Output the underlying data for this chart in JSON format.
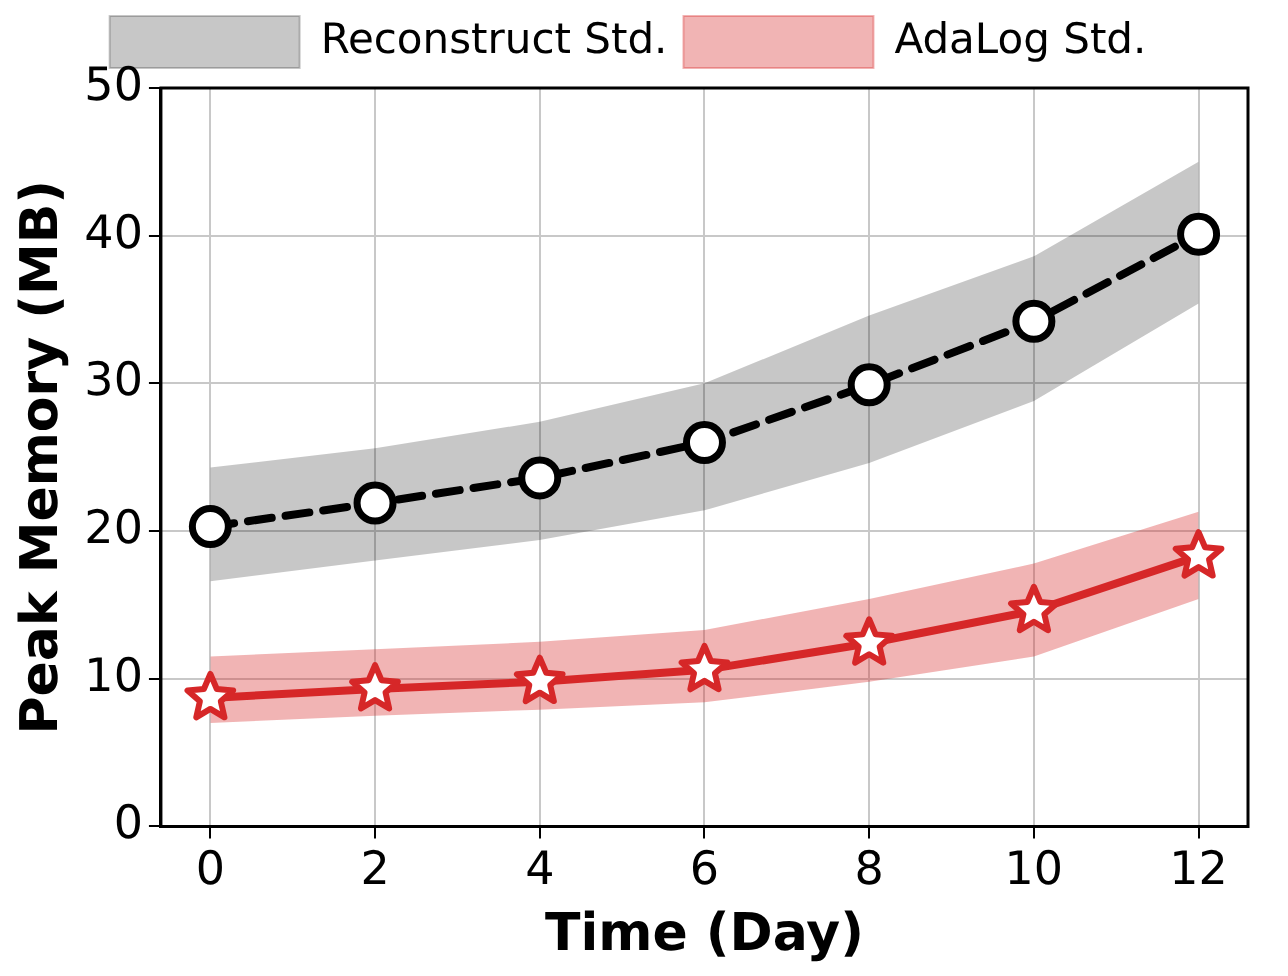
{
  "chart_data": {
    "type": "line",
    "xlabel": "Time (Day)",
    "ylabel": "Peak Memory (MB)",
    "x": [
      0,
      2,
      4,
      6,
      8,
      10,
      12
    ],
    "xlim": [
      -0.6,
      12.6
    ],
    "xticks": [
      0,
      2,
      4,
      6,
      8,
      10,
      12
    ],
    "ylim": [
      0,
      50
    ],
    "yticks": [
      0,
      10,
      20,
      30,
      40,
      50
    ],
    "grid": true,
    "legend": "top",
    "series": [
      {
        "name": "Reconstruct Std.",
        "color": "#000000",
        "marker": "circle",
        "line_style": "dashed",
        "values": [
          20.3,
          21.9,
          23.6,
          26,
          29.9,
          34.2,
          40.1
        ],
        "lower": [
          16.6,
          18,
          19.4,
          21.4,
          24.6,
          28.8,
          35.4
        ],
        "upper": [
          24.3,
          25.6,
          27.4,
          30,
          34.6,
          38.6,
          45
        ]
      },
      {
        "name": "AdaLog Std.",
        "color": "#d62728",
        "marker": "star",
        "line_style": "solid",
        "values": [
          8.7,
          9.3,
          9.8,
          10.6,
          12.4,
          14.6,
          18.3
        ],
        "lower": [
          7,
          7.5,
          7.9,
          8.4,
          9.8,
          11.5,
          15.4
        ],
        "upper": [
          11.5,
          12,
          12.5,
          13.3,
          15.4,
          17.8,
          21.3
        ]
      }
    ]
  }
}
